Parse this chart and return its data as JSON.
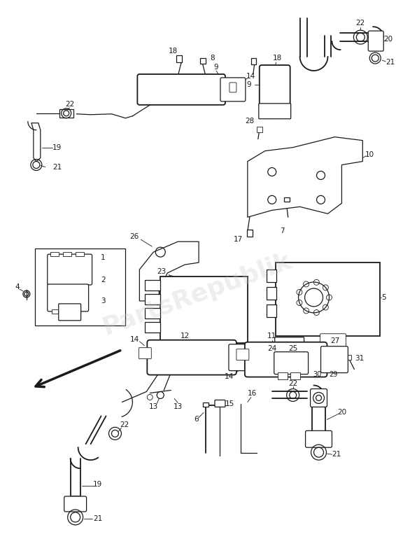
{
  "background_color": "#ffffff",
  "line_color": "#1a1a1a",
  "watermark_text": "PartsRepublik",
  "watermark_color": "#c8c8c8",
  "watermark_alpha": 0.3,
  "fig_width": 5.66,
  "fig_height": 8.0,
  "dpi": 100
}
